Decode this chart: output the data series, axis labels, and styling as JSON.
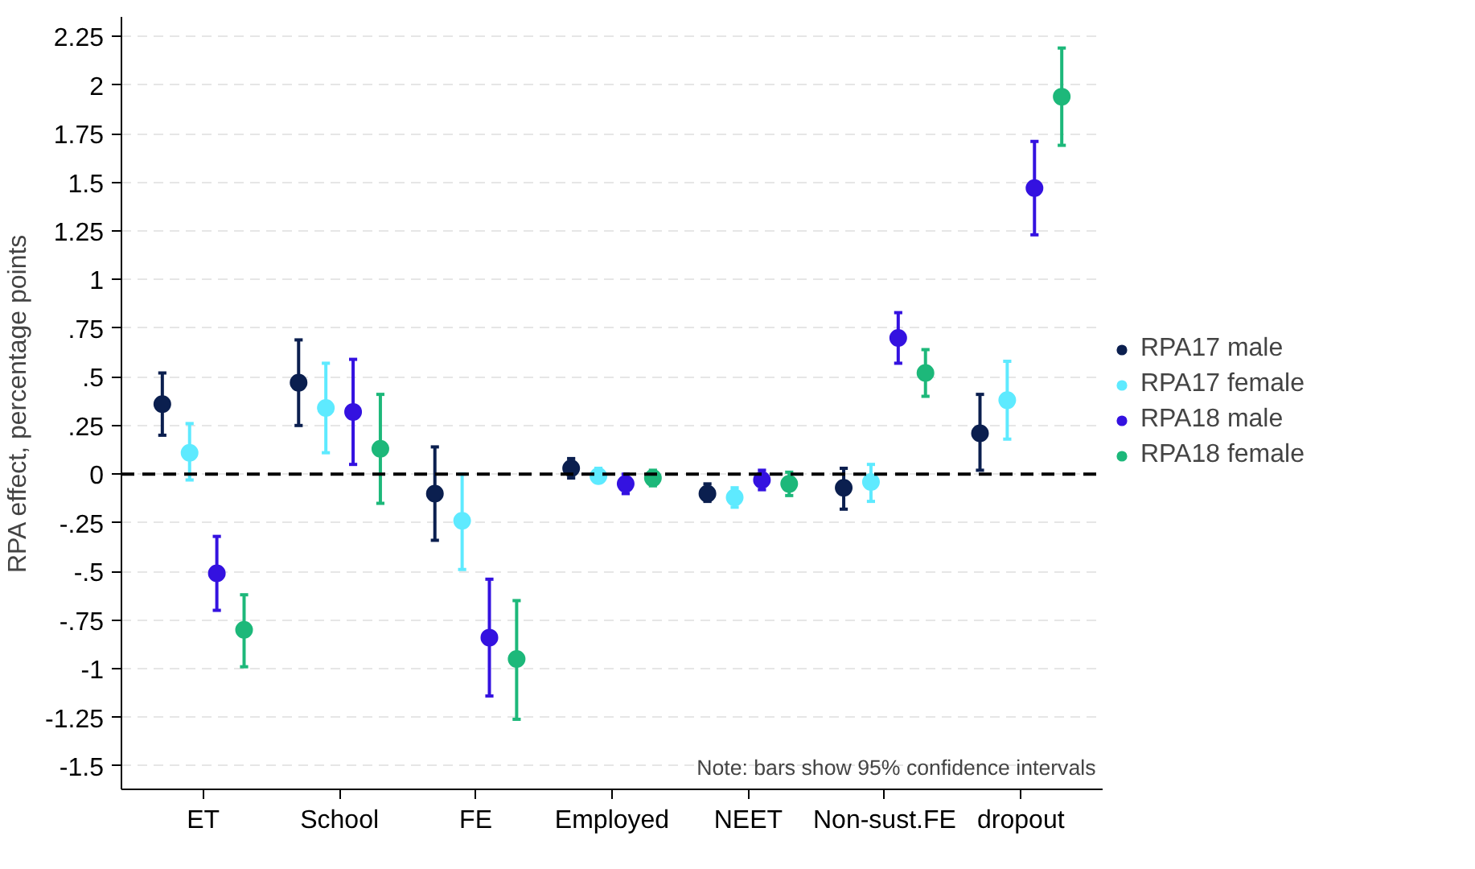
{
  "chart_data": {
    "type": "scatter",
    "ylabel": "RPA effect, percentage points",
    "categories": [
      "ET",
      "School",
      "FE",
      "Employed",
      "NEET",
      "Non-sust.FE",
      "dropout"
    ],
    "series": [
      {
        "name": "RPA17 male",
        "color": "#0b1f4f",
        "values": [
          0.36,
          0.47,
          -0.1,
          0.03,
          -0.1,
          -0.07,
          0.21
        ],
        "errors": [
          [
            0.2,
            0.52
          ],
          [
            0.25,
            0.69
          ],
          [
            -0.34,
            0.14
          ],
          [
            -0.02,
            0.08
          ],
          [
            -0.14,
            -0.05
          ],
          [
            -0.18,
            0.03
          ],
          [
            0.02,
            0.41
          ]
        ]
      },
      {
        "name": "RPA17 female",
        "color": "#5eeaff",
        "values": [
          0.11,
          0.34,
          -0.24,
          -0.01,
          -0.12,
          -0.04,
          0.38
        ],
        "errors": [
          [
            -0.03,
            0.26
          ],
          [
            0.11,
            0.57
          ],
          [
            -0.49,
            0.0
          ],
          [
            -0.04,
            0.03
          ],
          [
            -0.17,
            -0.07
          ],
          [
            -0.14,
            0.05
          ],
          [
            0.18,
            0.58
          ]
        ]
      },
      {
        "name": "RPA18 male",
        "color": "#3412e0",
        "values": [
          -0.51,
          0.32,
          -0.84,
          -0.05,
          -0.03,
          0.7,
          1.47
        ],
        "errors": [
          [
            -0.7,
            -0.32
          ],
          [
            0.05,
            0.59
          ],
          [
            -1.14,
            -0.54
          ],
          [
            -0.1,
            0.0
          ],
          [
            -0.08,
            0.02
          ],
          [
            0.57,
            0.83
          ],
          [
            1.23,
            1.71
          ]
        ]
      },
      {
        "name": "RPA18 female",
        "color": "#1db87a",
        "values": [
          -0.8,
          0.13,
          -0.95,
          -0.02,
          -0.05,
          0.52,
          1.94
        ],
        "errors": [
          [
            -0.99,
            -0.62
          ],
          [
            -0.15,
            0.41
          ],
          [
            -1.26,
            -0.65
          ],
          [
            -0.06,
            0.02
          ],
          [
            -0.11,
            0.01
          ],
          [
            0.4,
            0.64
          ],
          [
            1.69,
            2.19
          ]
        ]
      }
    ],
    "ylim": [
      -1.62,
      2.35
    ],
    "yticks": [
      {
        "value": -1.5,
        "label": "-1.5"
      },
      {
        "value": -1.25,
        "label": "-1.25"
      },
      {
        "value": -1,
        "label": "-1"
      },
      {
        "value": -0.75,
        "label": "-.75"
      },
      {
        "value": -0.5,
        "label": "-.5"
      },
      {
        "value": -0.25,
        "label": "-.25"
      },
      0,
      {
        "value": 0.25,
        "label": ".25"
      },
      {
        "value": 0.5,
        "label": ".5"
      },
      {
        "value": 0.75,
        "label": ".75"
      },
      1,
      1.25,
      1.5,
      1.75,
      2,
      2.25
    ],
    "ref_lines": [
      {
        "axis": "y",
        "value": 0,
        "color": "#000000",
        "line_style": "dashed"
      }
    ],
    "annotations": [
      "Note: bars show 95% confidence intervals"
    ],
    "grid": "y",
    "legend": "right",
    "marker": "circle"
  }
}
